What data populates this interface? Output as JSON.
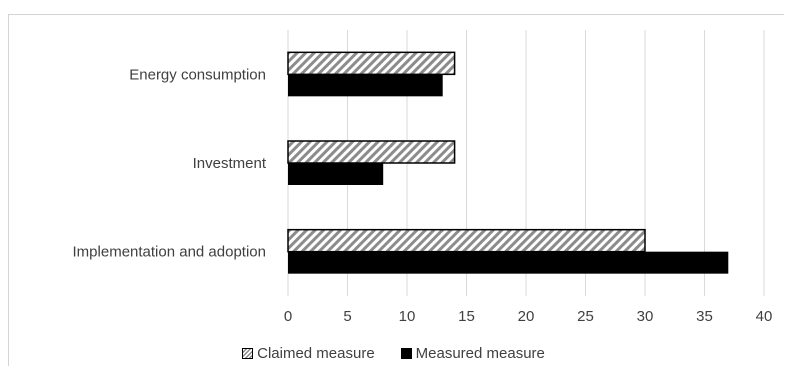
{
  "chart_data": {
    "type": "bar",
    "orientation": "horizontal",
    "categories": [
      "Energy consumption",
      "Investment",
      "Implementation and adoption"
    ],
    "series": [
      {
        "name": "Claimed measure",
        "values": [
          14,
          14,
          30
        ],
        "pattern": "diagonal-hatch",
        "color": "#000000"
      },
      {
        "name": "Measured measure",
        "values": [
          13,
          8,
          37
        ],
        "pattern": "solid",
        "color": "#000000"
      }
    ],
    "x_ticks": [
      "0",
      "5",
      "10",
      "15",
      "20",
      "25",
      "30",
      "35",
      "40"
    ],
    "xlim": [
      0,
      40
    ],
    "xlabel": "",
    "ylabel": "",
    "title": "",
    "grid": "vertical",
    "legend_position": "bottom"
  }
}
